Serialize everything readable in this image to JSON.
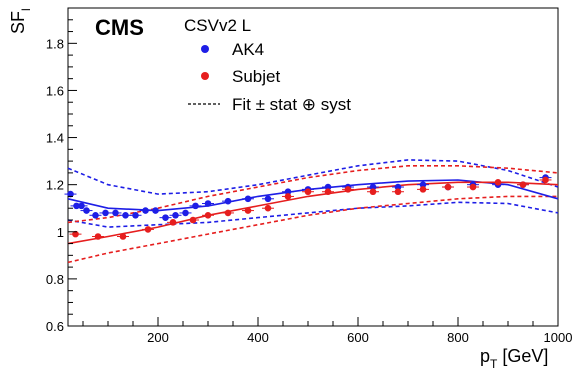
{
  "chart_data": {
    "type": "scatter",
    "title": "",
    "experiment_label": "CMS",
    "legend_header": "CSVv2 L",
    "xlabel": {
      "main": "p",
      "sub": "T",
      "unit": " [GeV]"
    },
    "ylabel": {
      "main": "SF",
      "sub": "l"
    },
    "xlim": [
      20,
      1000
    ],
    "ylim": [
      0.6,
      1.95
    ],
    "x_ticks": [
      200,
      400,
      600,
      800,
      1000
    ],
    "y_ticks": [
      0.6,
      0.8,
      1.0,
      1.2,
      1.4,
      1.6,
      1.8
    ],
    "y_tick_labels": [
      "0.6",
      "0.8",
      "1",
      "1.2",
      "1.4",
      "1.6",
      "1.8"
    ],
    "grid": false,
    "legend_position": "top",
    "colors": {
      "ak4": "#1e1ee6",
      "subjet": "#e61e1e"
    },
    "series": [
      {
        "name": "AK4",
        "color": "#1e1ee6",
        "marker": "circle",
        "x": [
          25,
          37,
          47,
          57,
          75,
          95,
          115,
          135,
          155,
          175,
          195,
          215,
          235,
          255,
          275,
          300,
          340,
          380,
          420,
          460,
          500,
          540,
          580,
          630,
          680,
          730,
          780,
          830,
          880,
          930,
          975
        ],
        "y": [
          1.16,
          1.11,
          1.11,
          1.09,
          1.07,
          1.08,
          1.08,
          1.07,
          1.07,
          1.09,
          1.09,
          1.06,
          1.07,
          1.08,
          1.11,
          1.12,
          1.13,
          1.14,
          1.14,
          1.17,
          1.18,
          1.19,
          1.19,
          1.19,
          1.19,
          1.2,
          1.19,
          1.2,
          1.2,
          1.2,
          1.23
        ],
        "fit": {
          "x": [
            20,
            100,
            200,
            300,
            400,
            500,
            600,
            700,
            800,
            900,
            1000
          ],
          "y": [
            1.14,
            1.1,
            1.09,
            1.11,
            1.15,
            1.18,
            1.2,
            1.215,
            1.22,
            1.2,
            1.14
          ]
        },
        "fit_band": {
          "x": [
            20,
            100,
            200,
            300,
            400,
            500,
            600,
            700,
            800,
            900,
            1000
          ],
          "upper": [
            1.27,
            1.2,
            1.16,
            1.17,
            1.2,
            1.24,
            1.28,
            1.305,
            1.3,
            1.26,
            1.19
          ],
          "lower": [
            1.05,
            1.02,
            1.03,
            1.04,
            1.06,
            1.08,
            1.1,
            1.11,
            1.125,
            1.12,
            1.08
          ]
        }
      },
      {
        "name": "Subjet",
        "color": "#e61e1e",
        "marker": "circle",
        "x": [
          35,
          80,
          130,
          180,
          230,
          270,
          300,
          340,
          380,
          420,
          460,
          500,
          540,
          580,
          630,
          680,
          730,
          780,
          830,
          880,
          930,
          975
        ],
        "y": [
          0.99,
          0.98,
          0.98,
          1.01,
          1.04,
          1.05,
          1.07,
          1.08,
          1.09,
          1.1,
          1.15,
          1.17,
          1.17,
          1.18,
          1.17,
          1.17,
          1.18,
          1.19,
          1.19,
          1.21,
          1.2,
          1.22
        ],
        "fit": {
          "x": [
            20,
            100,
            200,
            300,
            400,
            500,
            600,
            700,
            800,
            900,
            1000
          ],
          "y": [
            0.95,
            0.98,
            1.02,
            1.07,
            1.11,
            1.15,
            1.18,
            1.2,
            1.21,
            1.21,
            1.2
          ]
        },
        "fit_band": {
          "x": [
            20,
            100,
            200,
            300,
            400,
            500,
            600,
            700,
            800,
            900,
            1000
          ],
          "upper": [
            1.04,
            1.06,
            1.1,
            1.15,
            1.19,
            1.23,
            1.26,
            1.28,
            1.28,
            1.27,
            1.25
          ],
          "lower": [
            0.87,
            0.91,
            0.95,
            0.99,
            1.03,
            1.07,
            1.1,
            1.12,
            1.14,
            1.15,
            1.15
          ]
        }
      }
    ],
    "legend_entries": [
      {
        "label": "AK4",
        "series": 0,
        "style": "marker"
      },
      {
        "label": "Subjet",
        "series": 1,
        "style": "marker"
      },
      {
        "label": "Fit ± stat ⊕ syst",
        "style": "dashed"
      }
    ]
  }
}
